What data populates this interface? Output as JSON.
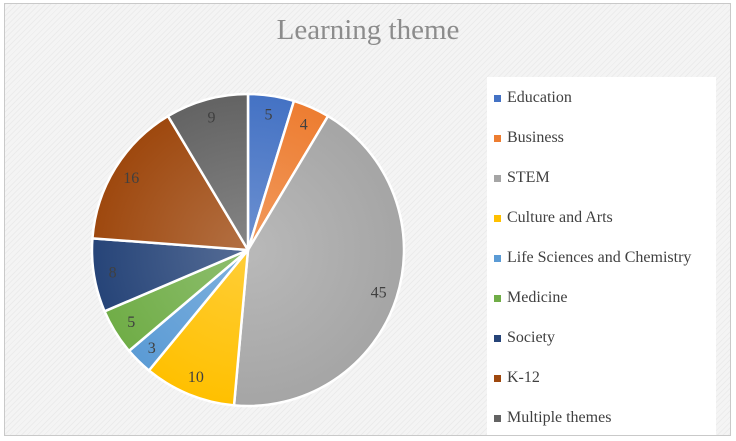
{
  "chart_data": {
    "type": "pie",
    "title": "Learning theme",
    "categories": [
      "Education",
      "Business",
      "STEM",
      "Culture and Arts",
      "Life Sciences and Chemistry",
      "Medicine",
      "Society",
      "K-12",
      "Multiple themes"
    ],
    "values": [
      5,
      4,
      45,
      10,
      3,
      5,
      8,
      16,
      9
    ],
    "colors": [
      "#4472c4",
      "#ed7d31",
      "#a5a5a5",
      "#ffc000",
      "#5b9bd5",
      "#70ad47",
      "#264478",
      "#9e480e",
      "#636363"
    ],
    "data_labels": [
      "5",
      "4",
      "45",
      "10",
      "3",
      "5",
      "8",
      "16",
      "9"
    ],
    "legend_position": "right"
  }
}
